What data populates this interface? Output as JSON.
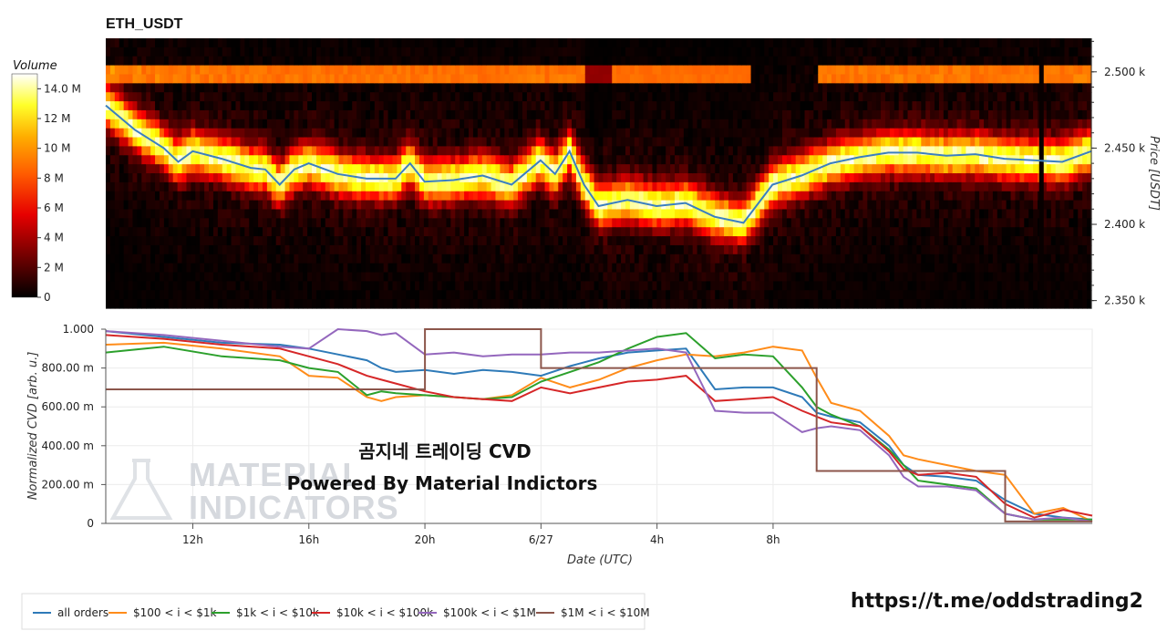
{
  "chart_data": [
    {
      "type": "heatmap",
      "title": "ETH_USDT",
      "xlabel": "",
      "ylabel": "Price [USDT]",
      "y_ticks": [
        "2.350 k",
        "2.400 k",
        "2.450 k",
        "2.500 k"
      ],
      "ylim": [
        2345,
        2522
      ],
      "colorbar": {
        "title": "Volume",
        "ticks": [
          "0",
          "2 M",
          "4 M",
          "6 M",
          "8 M",
          "10 M",
          "12 M",
          "14.0 M"
        ],
        "range": [
          0,
          15000000
        ],
        "colormap": "hot"
      },
      "price_line": {
        "color": "#3a7fc1",
        "x_hours": [
          0,
          1,
          2,
          2.5,
          3,
          4,
          5,
          5.5,
          6,
          6.5,
          7,
          8,
          9,
          10,
          10.5,
          11,
          12,
          13,
          14,
          14.5,
          15,
          15.5,
          16,
          16.5,
          17,
          18,
          19,
          20,
          21,
          22,
          23,
          24,
          25,
          26,
          27,
          28,
          29,
          30,
          31,
          32,
          33,
          34
        ],
        "values": [
          2478,
          2462,
          2450,
          2441,
          2448,
          2443,
          2437,
          2436,
          2426,
          2436,
          2440,
          2433,
          2430,
          2430,
          2440,
          2428,
          2429,
          2432,
          2426,
          2434,
          2442,
          2433,
          2448,
          2426,
          2412,
          2416,
          2412,
          2414,
          2405,
          2401,
          2426,
          2432,
          2440,
          2444,
          2447,
          2447,
          2445,
          2446,
          2443,
          2442,
          2441,
          2448
        ]
      }
    },
    {
      "type": "line",
      "title": "",
      "xlabel": "Date (UTC)",
      "ylabel": "Normalized CVD [arb. u.]",
      "x_ticks": [
        "12h",
        "16h",
        "20h",
        "6/27",
        "4h",
        "8h"
      ],
      "y_ticks": [
        "0",
        "200.00 m",
        "400.00 m",
        "600.00 m",
        "800.00 m",
        "1.000"
      ],
      "ylim": [
        0,
        1
      ],
      "x_hours": [
        0,
        2,
        4,
        6,
        7,
        8,
        9,
        9.5,
        10,
        11,
        12,
        13,
        14,
        15,
        16,
        17,
        18,
        19,
        20,
        21,
        22,
        23,
        24,
        24.5,
        25,
        26,
        27,
        27.5,
        28,
        29,
        30,
        31,
        32,
        33,
        34
      ],
      "series": [
        {
          "name": "all orders",
          "color": "#2e7ab8",
          "values": [
            0.99,
            0.96,
            0.93,
            0.92,
            0.9,
            0.87,
            0.84,
            0.8,
            0.78,
            0.79,
            0.77,
            0.79,
            0.78,
            0.76,
            0.81,
            0.85,
            0.88,
            0.89,
            0.9,
            0.69,
            0.7,
            0.7,
            0.65,
            0.57,
            0.55,
            0.52,
            0.4,
            0.3,
            0.25,
            0.24,
            0.22,
            0.12,
            0.05,
            0.03,
            0.02
          ]
        },
        {
          "name": "$100 < i < $1k",
          "color": "#ff8c1a",
          "values": [
            0.92,
            0.93,
            0.9,
            0.86,
            0.76,
            0.75,
            0.65,
            0.63,
            0.65,
            0.66,
            0.65,
            0.64,
            0.66,
            0.75,
            0.7,
            0.74,
            0.8,
            0.84,
            0.87,
            0.86,
            0.88,
            0.91,
            0.89,
            0.75,
            0.62,
            0.58,
            0.45,
            0.35,
            0.33,
            0.3,
            0.27,
            0.25,
            0.05,
            0.08,
            0.01
          ]
        },
        {
          "name": "$1k < i < $10k",
          "color": "#2ca02c",
          "values": [
            0.88,
            0.91,
            0.86,
            0.84,
            0.8,
            0.78,
            0.66,
            0.68,
            0.67,
            0.66,
            0.65,
            0.64,
            0.65,
            0.73,
            0.78,
            0.83,
            0.9,
            0.96,
            0.98,
            0.85,
            0.87,
            0.86,
            0.7,
            0.6,
            0.56,
            0.5,
            0.38,
            0.3,
            0.22,
            0.2,
            0.18,
            0.05,
            0.02,
            0.02,
            0.02
          ]
        },
        {
          "name": "$10k < i < $100k",
          "color": "#d62728",
          "values": [
            0.97,
            0.95,
            0.92,
            0.9,
            0.86,
            0.82,
            0.76,
            0.74,
            0.72,
            0.68,
            0.65,
            0.64,
            0.63,
            0.7,
            0.67,
            0.7,
            0.73,
            0.74,
            0.76,
            0.63,
            0.64,
            0.65,
            0.58,
            0.55,
            0.52,
            0.5,
            0.37,
            0.28,
            0.25,
            0.26,
            0.24,
            0.1,
            0.03,
            0.07,
            0.04
          ]
        },
        {
          "name": "$100k < i < $1M",
          "color": "#9467bd",
          "values": [
            0.99,
            0.97,
            0.94,
            0.91,
            0.9,
            1.0,
            0.99,
            0.97,
            0.98,
            0.87,
            0.88,
            0.86,
            0.87,
            0.87,
            0.88,
            0.88,
            0.89,
            0.9,
            0.88,
            0.58,
            0.57,
            0.57,
            0.47,
            0.49,
            0.5,
            0.48,
            0.35,
            0.24,
            0.19,
            0.19,
            0.17,
            0.05,
            0.02,
            0.03,
            0.01
          ]
        },
        {
          "name": "$1M < i < $10M",
          "color": "#8c564b",
          "values": [
            0.69,
            0.69,
            0.69,
            0.69,
            0.69,
            0.69,
            0.69,
            0.69,
            0.69,
            1.0,
            1.0,
            1.0,
            1.0,
            0.8,
            0.8,
            0.8,
            0.8,
            0.8,
            0.8,
            0.8,
            0.8,
            0.8,
            0.8,
            0.27,
            0.27,
            0.27,
            0.27,
            0.27,
            0.27,
            0.27,
            0.27,
            0.01,
            0.01,
            0.01,
            0.01
          ]
        }
      ]
    }
  ],
  "overlay": {
    "line1": "곰지네 트레이딩 CVD",
    "line2": "Powered By Material Indictors",
    "watermark": [
      "MATERIAL",
      "INDICATORS"
    ],
    "telegram_link": "https://t.me/oddstrading2"
  }
}
